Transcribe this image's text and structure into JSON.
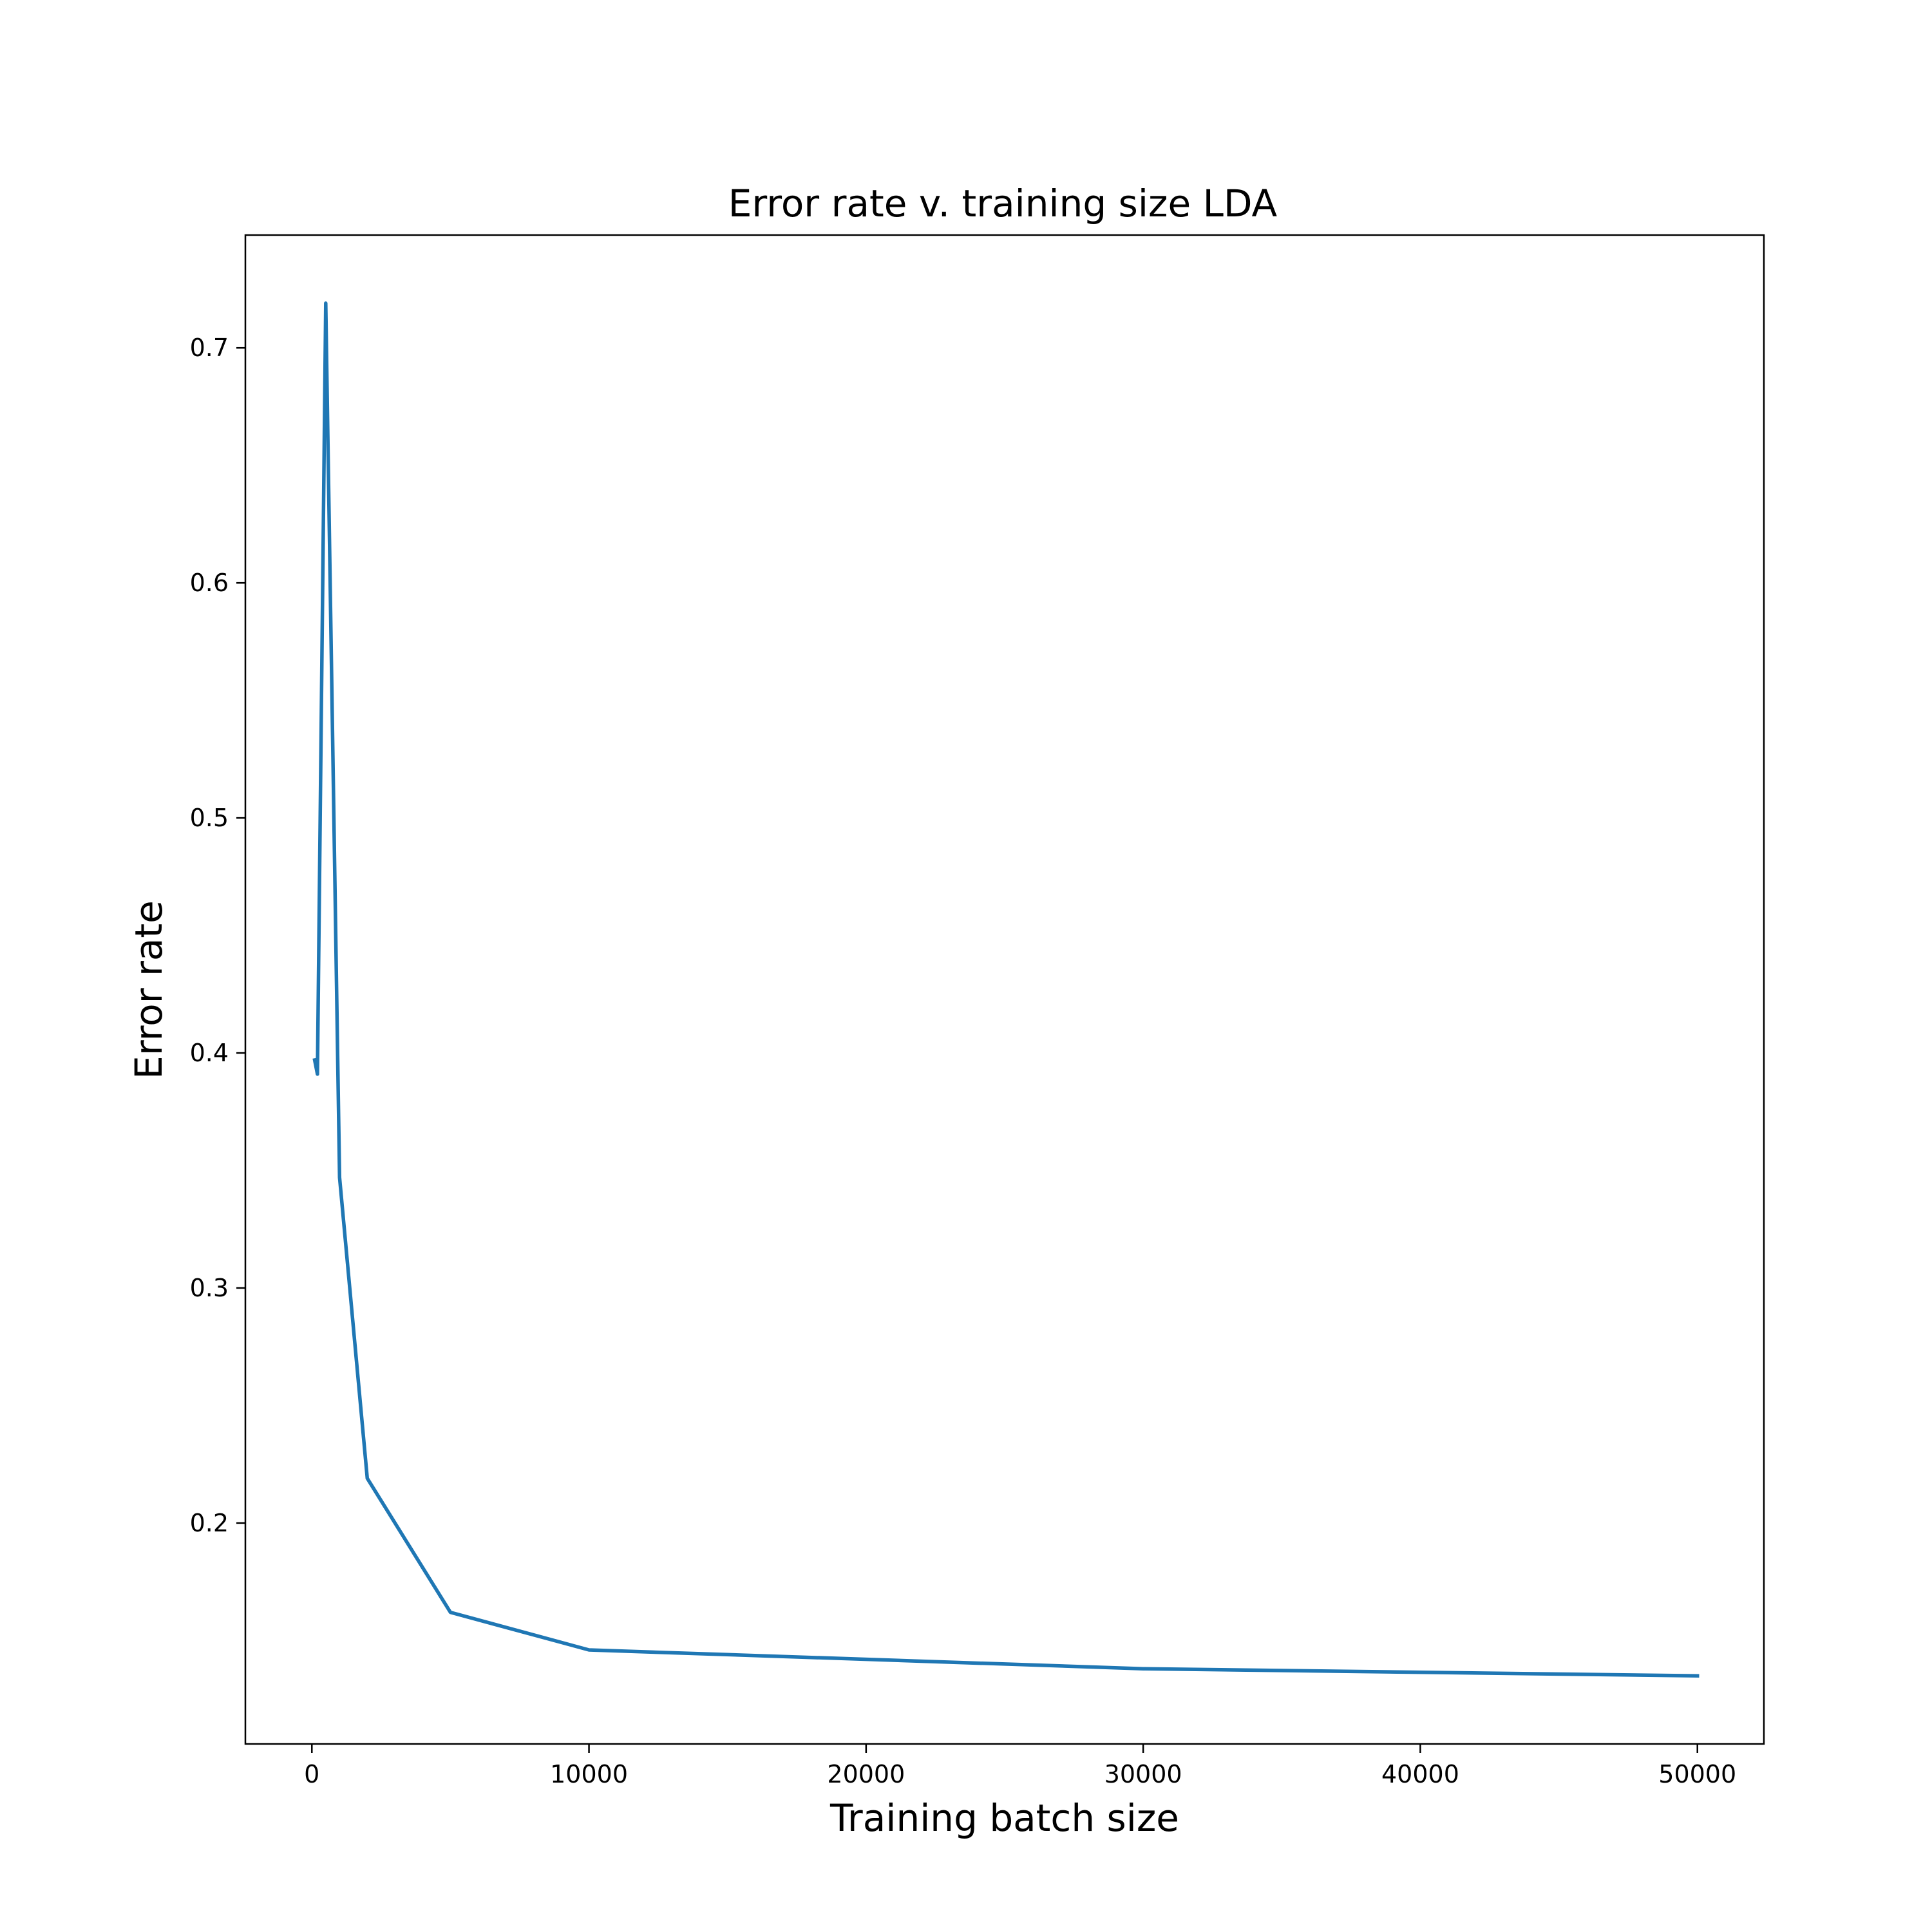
{
  "chart_data": {
    "type": "line",
    "title": "Error rate v. training size LDA",
    "xlabel": "Training batch size",
    "ylabel": "Error rate",
    "xlim": [
      -2400,
      52400
    ],
    "ylim": [
      0.106,
      0.748
    ],
    "xticks": [
      0,
      10000,
      20000,
      30000,
      40000,
      50000
    ],
    "xtick_labels": [
      "0",
      "10000",
      "20000",
      "30000",
      "40000",
      "50000"
    ],
    "yticks": [
      0.2,
      0.3,
      0.4,
      0.5,
      0.6,
      0.7
    ],
    "ytick_labels": [
      "0.2",
      "0.3",
      "0.4",
      "0.5",
      "0.6",
      "0.7"
    ],
    "grid": false,
    "legend": false,
    "series": [
      {
        "color": "#1f77b4",
        "x": [
          100,
          200,
          500,
          1000,
          2000,
          5000,
          10000,
          30000,
          50000
        ],
        "y": [
          0.397,
          0.391,
          0.719,
          0.347,
          0.219,
          0.162,
          0.146,
          0.138,
          0.135
        ]
      }
    ]
  }
}
